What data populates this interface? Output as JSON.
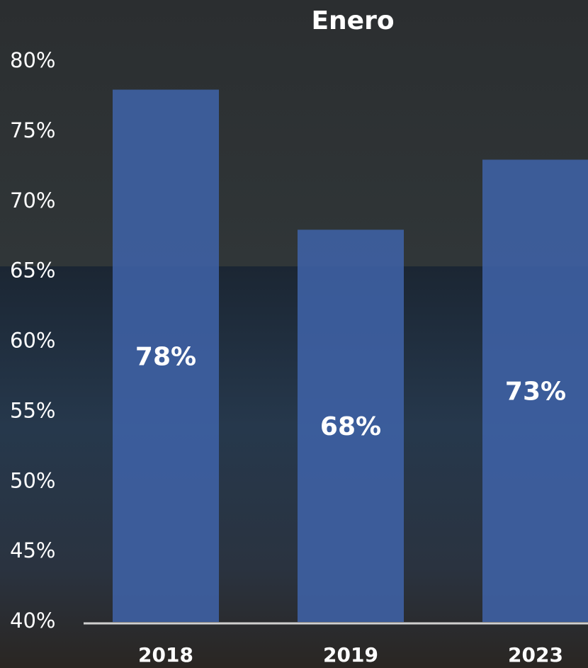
{
  "chart_data": {
    "type": "bar",
    "title": "Enero",
    "categories": [
      "2018",
      "2019",
      "2023"
    ],
    "values": [
      78,
      68,
      73
    ],
    "value_labels": [
      "78%",
      "68%",
      "73%"
    ],
    "color": "#3f62a6",
    "ylim": [
      40,
      80
    ],
    "yticks": [
      {
        "value": 40,
        "label": "40%"
      },
      {
        "value": 45,
        "label": "45%"
      },
      {
        "value": 50,
        "label": "50%"
      },
      {
        "value": 55,
        "label": "55%"
      },
      {
        "value": 60,
        "label": "60%"
      },
      {
        "value": 65,
        "label": "65%"
      },
      {
        "value": 70,
        "label": "70%"
      },
      {
        "value": 75,
        "label": "75%"
      },
      {
        "value": 80,
        "label": "80%"
      }
    ]
  }
}
